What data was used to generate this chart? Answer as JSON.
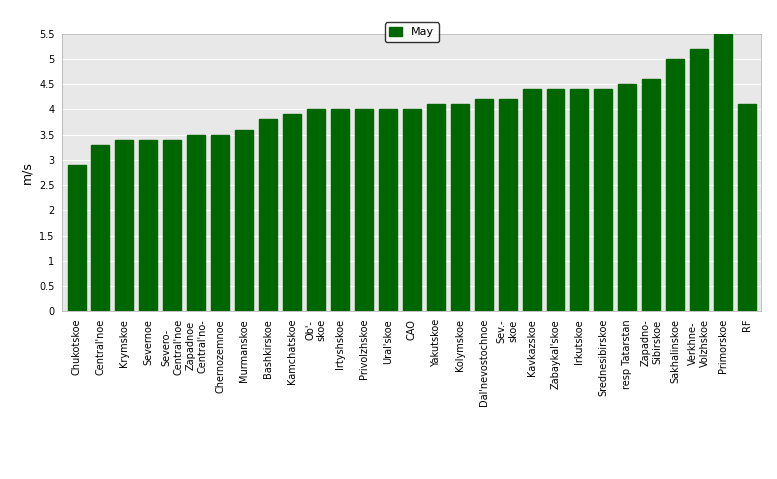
{
  "categories": [
    "Chukotskoe",
    "Central'noe",
    "Krymskoe",
    "Severnoe",
    "Severo-\nCentral'noe",
    "Zapadnoe\nCentral'no-",
    "Chernozemnoe",
    "Murmanskoe",
    "Bashkirskoe",
    "Kamchatskoe",
    "Ob'-\nskoe",
    "Irtyshskoe",
    "Privolzhskoe",
    "Ural'skoe",
    "CAO",
    "Yakutskoe",
    "Kolymskoe",
    "Dal'nevostochnoe",
    "Sev.-\nskoe",
    "Kavkazskoe",
    "Zabaykal'skoe",
    "Irkutskoe",
    "Srednesibirskoe",
    "resp Tatarstan",
    "Zapadno-\nSibirskoe",
    "Sakhalinskoe",
    "Verkhne-\nVolzhskoe",
    "Primorskoe",
    "RF"
  ],
  "values": [
    2.9,
    3.3,
    3.4,
    3.4,
    3.4,
    3.5,
    3.5,
    3.6,
    3.8,
    3.9,
    4.0,
    4.0,
    4.0,
    4.0,
    4.0,
    4.1,
    4.1,
    4.2,
    4.2,
    4.4,
    4.4,
    4.4,
    4.4,
    4.5,
    4.6,
    5.0,
    5.2,
    5.5,
    4.1
  ],
  "bar_color": "#006600",
  "legend_color": "#006600",
  "legend_label": "May",
  "ylabel": "m/s",
  "ylim": [
    0,
    5.5
  ],
  "yticks": [
    0,
    0.5,
    1.0,
    1.5,
    2.0,
    2.5,
    3.0,
    3.5,
    4.0,
    4.5,
    5.0,
    5.5
  ],
  "plot_bgcolor": "#e8e8e8",
  "fig_bgcolor": "#ffffff",
  "grid_color": "#ffffff",
  "tick_fontsize": 7,
  "ylabel_fontsize": 9,
  "legend_fontsize": 8
}
